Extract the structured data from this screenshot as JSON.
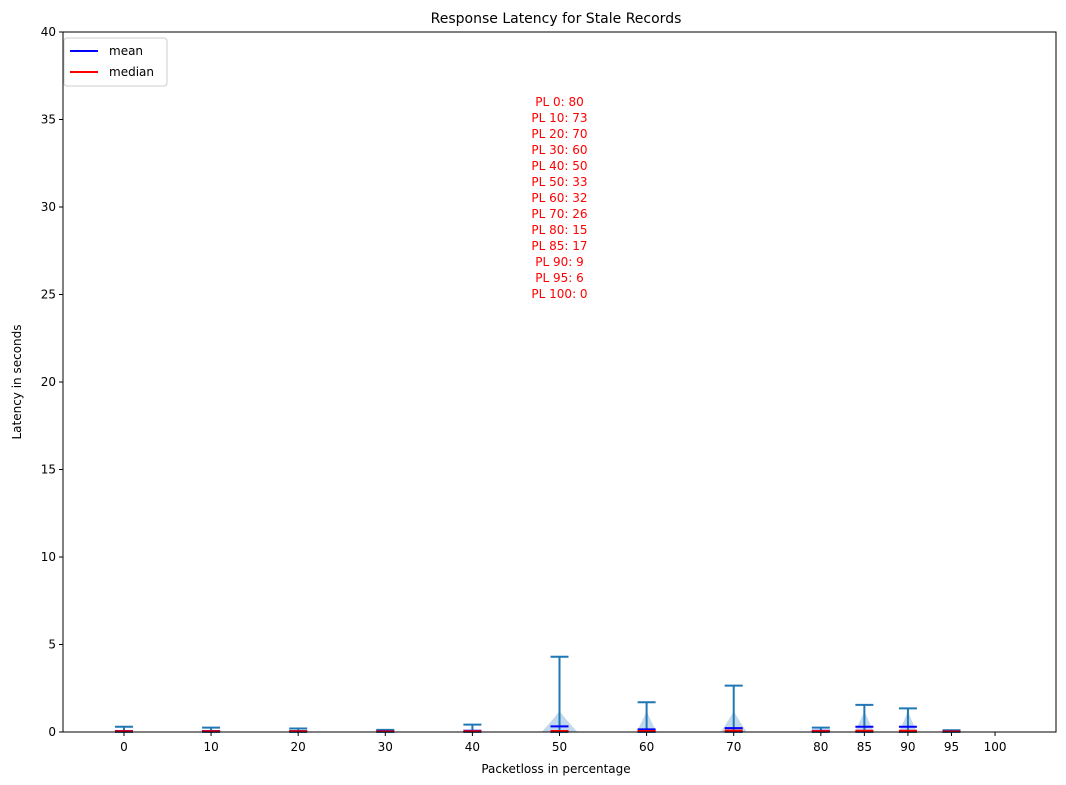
{
  "chart_data": {
    "type": "violin",
    "title": "Response Latency for Stale Records",
    "xlabel": "Packetloss in percentage",
    "ylabel": "Latency in seconds",
    "xlim": [
      -7,
      107
    ],
    "ylim": [
      0,
      40
    ],
    "yticks": [
      0,
      5,
      10,
      15,
      20,
      25,
      30,
      35,
      40
    ],
    "grid": false,
    "legend_position": "top-left",
    "legend": [
      {
        "label": "mean",
        "color": "#0000ff"
      },
      {
        "label": "median",
        "color": "#ff0000"
      }
    ],
    "categories": [
      "0",
      "10",
      "20",
      "30",
      "40",
      "50",
      "60",
      "70",
      "80",
      "85",
      "90",
      "95",
      "100"
    ],
    "positions": [
      0,
      10,
      20,
      30,
      40,
      50,
      60,
      70,
      80,
      85,
      90,
      95,
      100
    ],
    "violins": [
      {
        "pl": 0,
        "max": 0.3,
        "mean": 0.06,
        "median": 0.04
      },
      {
        "pl": 10,
        "max": 0.25,
        "mean": 0.06,
        "median": 0.04
      },
      {
        "pl": 20,
        "max": 0.2,
        "mean": 0.05,
        "median": 0.04
      },
      {
        "pl": 30,
        "max": 0.12,
        "mean": 0.04,
        "median": 0.03
      },
      {
        "pl": 40,
        "max": 0.42,
        "mean": 0.07,
        "median": 0.04
      },
      {
        "pl": 50,
        "max": 4.3,
        "mean": 0.32,
        "median": 0.06
      },
      {
        "pl": 60,
        "max": 1.7,
        "mean": 0.15,
        "median": 0.06
      },
      {
        "pl": 70,
        "max": 2.65,
        "mean": 0.22,
        "median": 0.08
      },
      {
        "pl": 80,
        "max": 0.25,
        "mean": 0.07,
        "median": 0.05
      },
      {
        "pl": 85,
        "max": 1.55,
        "mean": 0.3,
        "median": 0.07
      },
      {
        "pl": 90,
        "max": 1.35,
        "mean": 0.3,
        "median": 0.07
      },
      {
        "pl": 95,
        "max": 0.1,
        "mean": 0.04,
        "median": 0.03
      }
    ],
    "annotation_color": "#ff0000",
    "annotations": [
      "PL 0: 80",
      "PL 10: 73",
      "PL 20: 70",
      "PL 30: 60",
      "PL 40: 50",
      "PL 50: 33",
      "PL 60: 32",
      "PL 70: 26",
      "PL 80: 15",
      "PL 85: 17",
      "PL 90: 9",
      "PL 95: 6",
      "PL 100: 0"
    ],
    "colors": {
      "body": "#1f77b4",
      "fill": "#a6c8e6",
      "mean": "#0000ff",
      "median": "#ff0000"
    }
  }
}
